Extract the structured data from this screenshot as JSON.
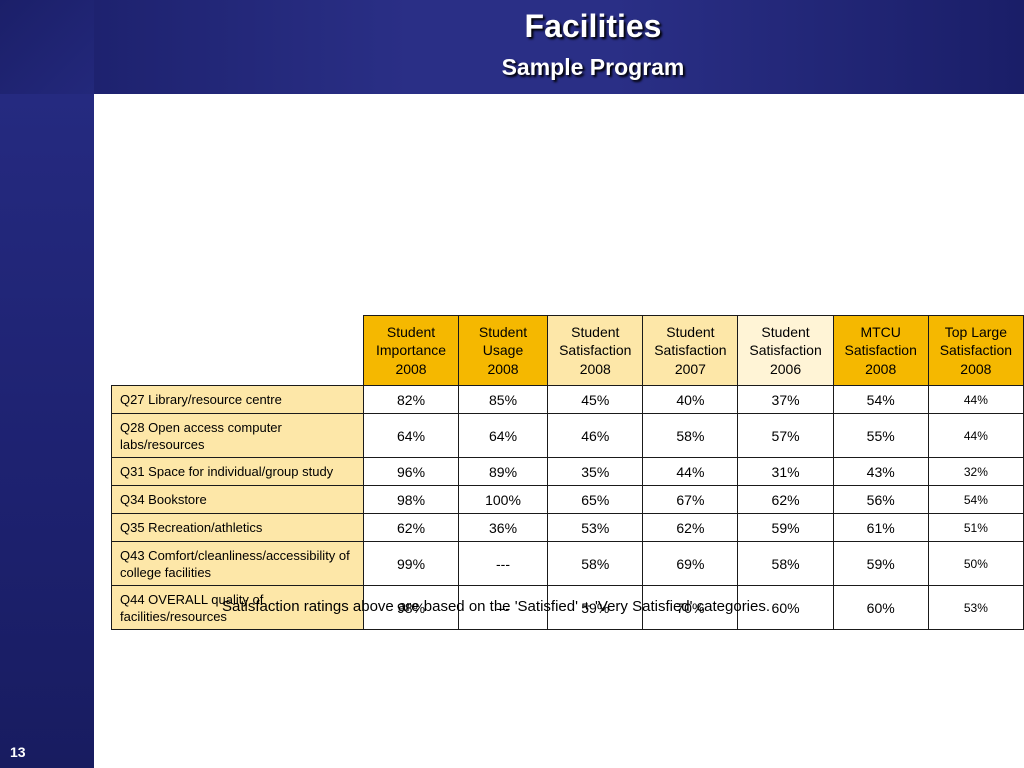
{
  "slide": {
    "title": "Facilities",
    "subtitle": "Sample Program",
    "number": "13",
    "footnote": "Satisfaction ratings above are based on the 'Satisfied' + 'Very Satisfied' categories."
  },
  "colors": {
    "header_gold": "#f5b800",
    "header_light": "#fde7a8",
    "header_pale": "#fff4d6",
    "row_label_bg": "#fde7a8",
    "frame_blue": "#1c2070"
  },
  "table": {
    "columns": [
      {
        "line1": "Student",
        "line2": "Importance",
        "line3": "2008",
        "tone": "gold"
      },
      {
        "line1": "Student",
        "line2": "Usage",
        "line3": "2008",
        "tone": "gold"
      },
      {
        "line1": "Student",
        "line2": "Satisfaction",
        "line3": "2008",
        "tone": "light"
      },
      {
        "line1": "Student",
        "line2": "Satisfaction",
        "line3": "2007",
        "tone": "light"
      },
      {
        "line1": "Student",
        "line2": "Satisfaction",
        "line3": "2006",
        "tone": "pale"
      },
      {
        "line1": "MTCU",
        "line2": "Satisfaction",
        "line3": "2008",
        "tone": "gold"
      },
      {
        "line1": "Top Large",
        "line2": "Satisfaction",
        "line3": "2008",
        "tone": "gold"
      }
    ],
    "rows": [
      {
        "label": "Q27 Library/resource centre",
        "values": [
          "82%",
          "85%",
          "45%",
          "40%",
          "37%",
          "54%",
          "44%"
        ]
      },
      {
        "label": "Q28 Open access computer labs/resources",
        "values": [
          "64%",
          "64%",
          "46%",
          "58%",
          "57%",
          "55%",
          "44%"
        ]
      },
      {
        "label": "Q31 Space for individual/group study",
        "values": [
          "96%",
          "89%",
          "35%",
          "44%",
          "31%",
          "43%",
          "32%"
        ]
      },
      {
        "label": "Q34 Bookstore",
        "values": [
          "98%",
          "100%",
          "65%",
          "67%",
          "62%",
          "56%",
          "54%"
        ]
      },
      {
        "label": "Q35 Recreation/athletics",
        "values": [
          "62%",
          "36%",
          "53%",
          "62%",
          "59%",
          "61%",
          "51%"
        ]
      },
      {
        "label": "Q43 Comfort/cleanliness/accessibility of college facilities",
        "values": [
          "99%",
          "---",
          "58%",
          "69%",
          "58%",
          "59%",
          "50%"
        ]
      },
      {
        "label": "Q44 OVERALL quality of facilities/resources",
        "values": [
          "98%",
          "---",
          "59%",
          "70%",
          "60%",
          "60%",
          "53%"
        ]
      }
    ]
  }
}
